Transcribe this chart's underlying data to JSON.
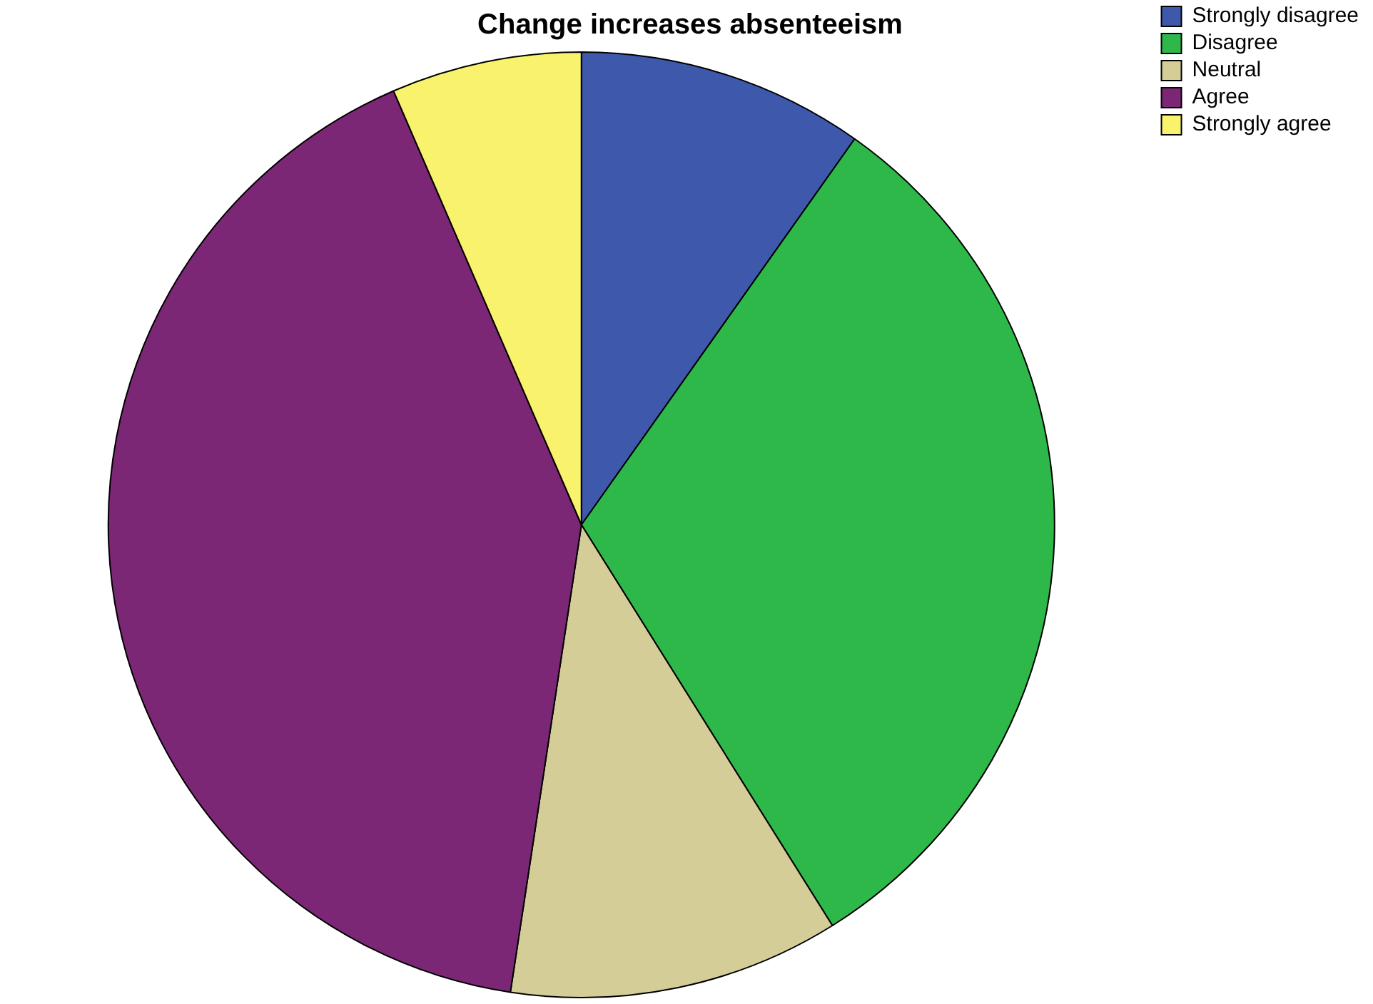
{
  "chart_data": {
    "type": "pie",
    "title": "Change increases absenteeism",
    "categories": [
      "Strongly disagree",
      "Disagree",
      "Neutral",
      "Agree",
      "Strongly agree"
    ],
    "values": [
      9.8,
      31.3,
      11.3,
      41.1,
      6.5
    ],
    "colors": [
      "#3e58ac",
      "#2fb84a",
      "#d4cd98",
      "#7b2775",
      "#f8f26c"
    ],
    "legend": "top right"
  }
}
